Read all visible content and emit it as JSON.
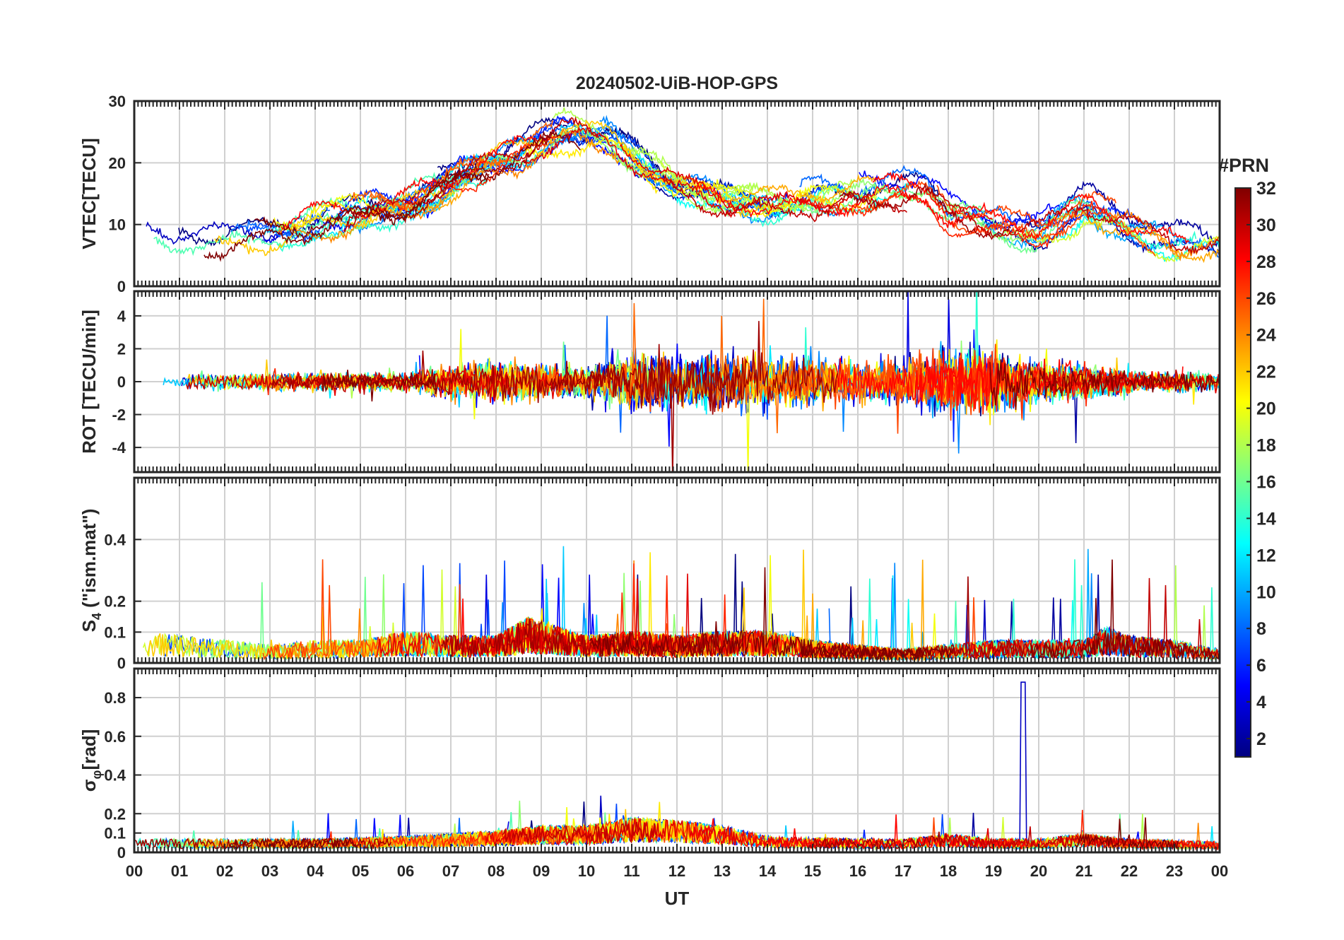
{
  "chart_data": [
    {
      "type": "line",
      "title": "20240502-UiB-HOP-GPS",
      "xlabel": "",
      "ylabel": "VTEC[TECU]",
      "xlim": [
        0,
        24
      ],
      "ylim": [
        0,
        30
      ],
      "yticks": [
        0,
        10,
        20,
        30
      ],
      "grid": true,
      "series_note": "One line per GPS PRN (1-32), colored by PRN",
      "profile": {
        "hours": [
          0,
          2,
          4,
          6,
          8,
          9.5,
          10.5,
          12,
          14,
          16,
          17.5,
          18,
          19,
          20,
          21,
          22,
          23,
          24
        ],
        "values": [
          8,
          7,
          10,
          13,
          20,
          25,
          24,
          16,
          13,
          15,
          16,
          12,
          10,
          9,
          13,
          10,
          7,
          7
        ]
      }
    },
    {
      "type": "line",
      "xlabel": "",
      "ylabel": "ROT [TECU/min]",
      "xlim": [
        0,
        24
      ],
      "ylim": [
        -5.5,
        5.5
      ],
      "yticks": [
        -4,
        -2,
        0,
        2,
        4
      ],
      "grid": true,
      "profile": {
        "hours": [
          0,
          3,
          6,
          8,
          10,
          11,
          13,
          15,
          17,
          18,
          19.5,
          20,
          21,
          22,
          24
        ],
        "values": [
          0.4,
          0.5,
          0.5,
          1.2,
          0.8,
          1.6,
          1.6,
          1.3,
          1.2,
          1.8,
          1.5,
          1.0,
          1.0,
          0.6,
          0.5
        ]
      }
    },
    {
      "type": "line",
      "xlabel": "",
      "ylabel": "S4 (\"ism.mat\")",
      "ylabel_base": "S",
      "ylabel_sub": "4",
      "ylabel_rest": " (\"ism.mat\")",
      "xlim": [
        0,
        24
      ],
      "ylim": [
        0,
        0.6
      ],
      "yticks": [
        0,
        0.1,
        0.2,
        0.4
      ],
      "ytick_labels": [
        "0",
        "0.1",
        "0.2",
        "0.4"
      ],
      "grid": true,
      "profile": {
        "hours": [
          0,
          1,
          2,
          3,
          4,
          5,
          6,
          7,
          8,
          8.7,
          10,
          11,
          12,
          13,
          14,
          15,
          16,
          17,
          18,
          19,
          20,
          21,
          21.5,
          22,
          23,
          24
        ],
        "values": [
          0.07,
          0.06,
          0.05,
          0.04,
          0.05,
          0.05,
          0.07,
          0.06,
          0.06,
          0.1,
          0.06,
          0.07,
          0.06,
          0.07,
          0.07,
          0.05,
          0.04,
          0.03,
          0.04,
          0.05,
          0.05,
          0.05,
          0.08,
          0.06,
          0.05,
          0.03
        ]
      }
    },
    {
      "type": "line",
      "xlabel": "UT",
      "ylabel": "σφ[rad]",
      "ylabel_base": "σ",
      "ylabel_sub": "φ",
      "ylabel_rest": "[rad]",
      "xlim": [
        0,
        24
      ],
      "ylim": [
        0,
        0.95
      ],
      "yticks": [
        0,
        0.1,
        0.2,
        0.4,
        0.6,
        0.8
      ],
      "ytick_labels": [
        "0",
        "0.1",
        "0.2",
        "0.4",
        "0.6",
        "0.8"
      ],
      "xticks": [
        0,
        1,
        2,
        3,
        4,
        5,
        6,
        7,
        8,
        9,
        10,
        11,
        12,
        13,
        14,
        15,
        16,
        17,
        18,
        19,
        20,
        21,
        22,
        23,
        24
      ],
      "xtick_labels": [
        "00",
        "01",
        "02",
        "03",
        "04",
        "05",
        "06",
        "07",
        "08",
        "09",
        "10",
        "11",
        "12",
        "13",
        "14",
        "15",
        "16",
        "17",
        "18",
        "19",
        "20",
        "21",
        "22",
        "23",
        "00"
      ],
      "grid": true,
      "profile": {
        "hours": [
          0,
          4,
          6,
          8,
          9,
          10,
          11,
          12,
          13,
          14,
          16,
          17,
          18,
          19,
          20,
          21,
          22,
          24
        ],
        "values": [
          0.05,
          0.05,
          0.06,
          0.08,
          0.1,
          0.1,
          0.13,
          0.12,
          0.1,
          0.06,
          0.05,
          0.05,
          0.07,
          0.05,
          0.05,
          0.07,
          0.05,
          0.04
        ]
      }
    }
  ],
  "colorbar": {
    "title": "#PRN",
    "min": 1,
    "max": 32,
    "ticks": [
      2,
      4,
      6,
      8,
      10,
      12,
      14,
      16,
      18,
      20,
      22,
      24,
      26,
      28,
      30,
      32
    ],
    "colormap": "jet",
    "colors": [
      "#000080",
      "#0000ff",
      "#0080ff",
      "#00ffff",
      "#80ff80",
      "#ffff00",
      "#ff8000",
      "#ff0000",
      "#800000"
    ]
  },
  "prns": [
    1,
    2,
    3,
    4,
    5,
    6,
    7,
    8,
    9,
    10,
    11,
    12,
    13,
    14,
    15,
    16,
    17,
    18,
    19,
    20,
    21,
    22,
    23,
    24,
    25,
    26,
    27,
    28,
    29,
    30,
    31,
    32
  ]
}
